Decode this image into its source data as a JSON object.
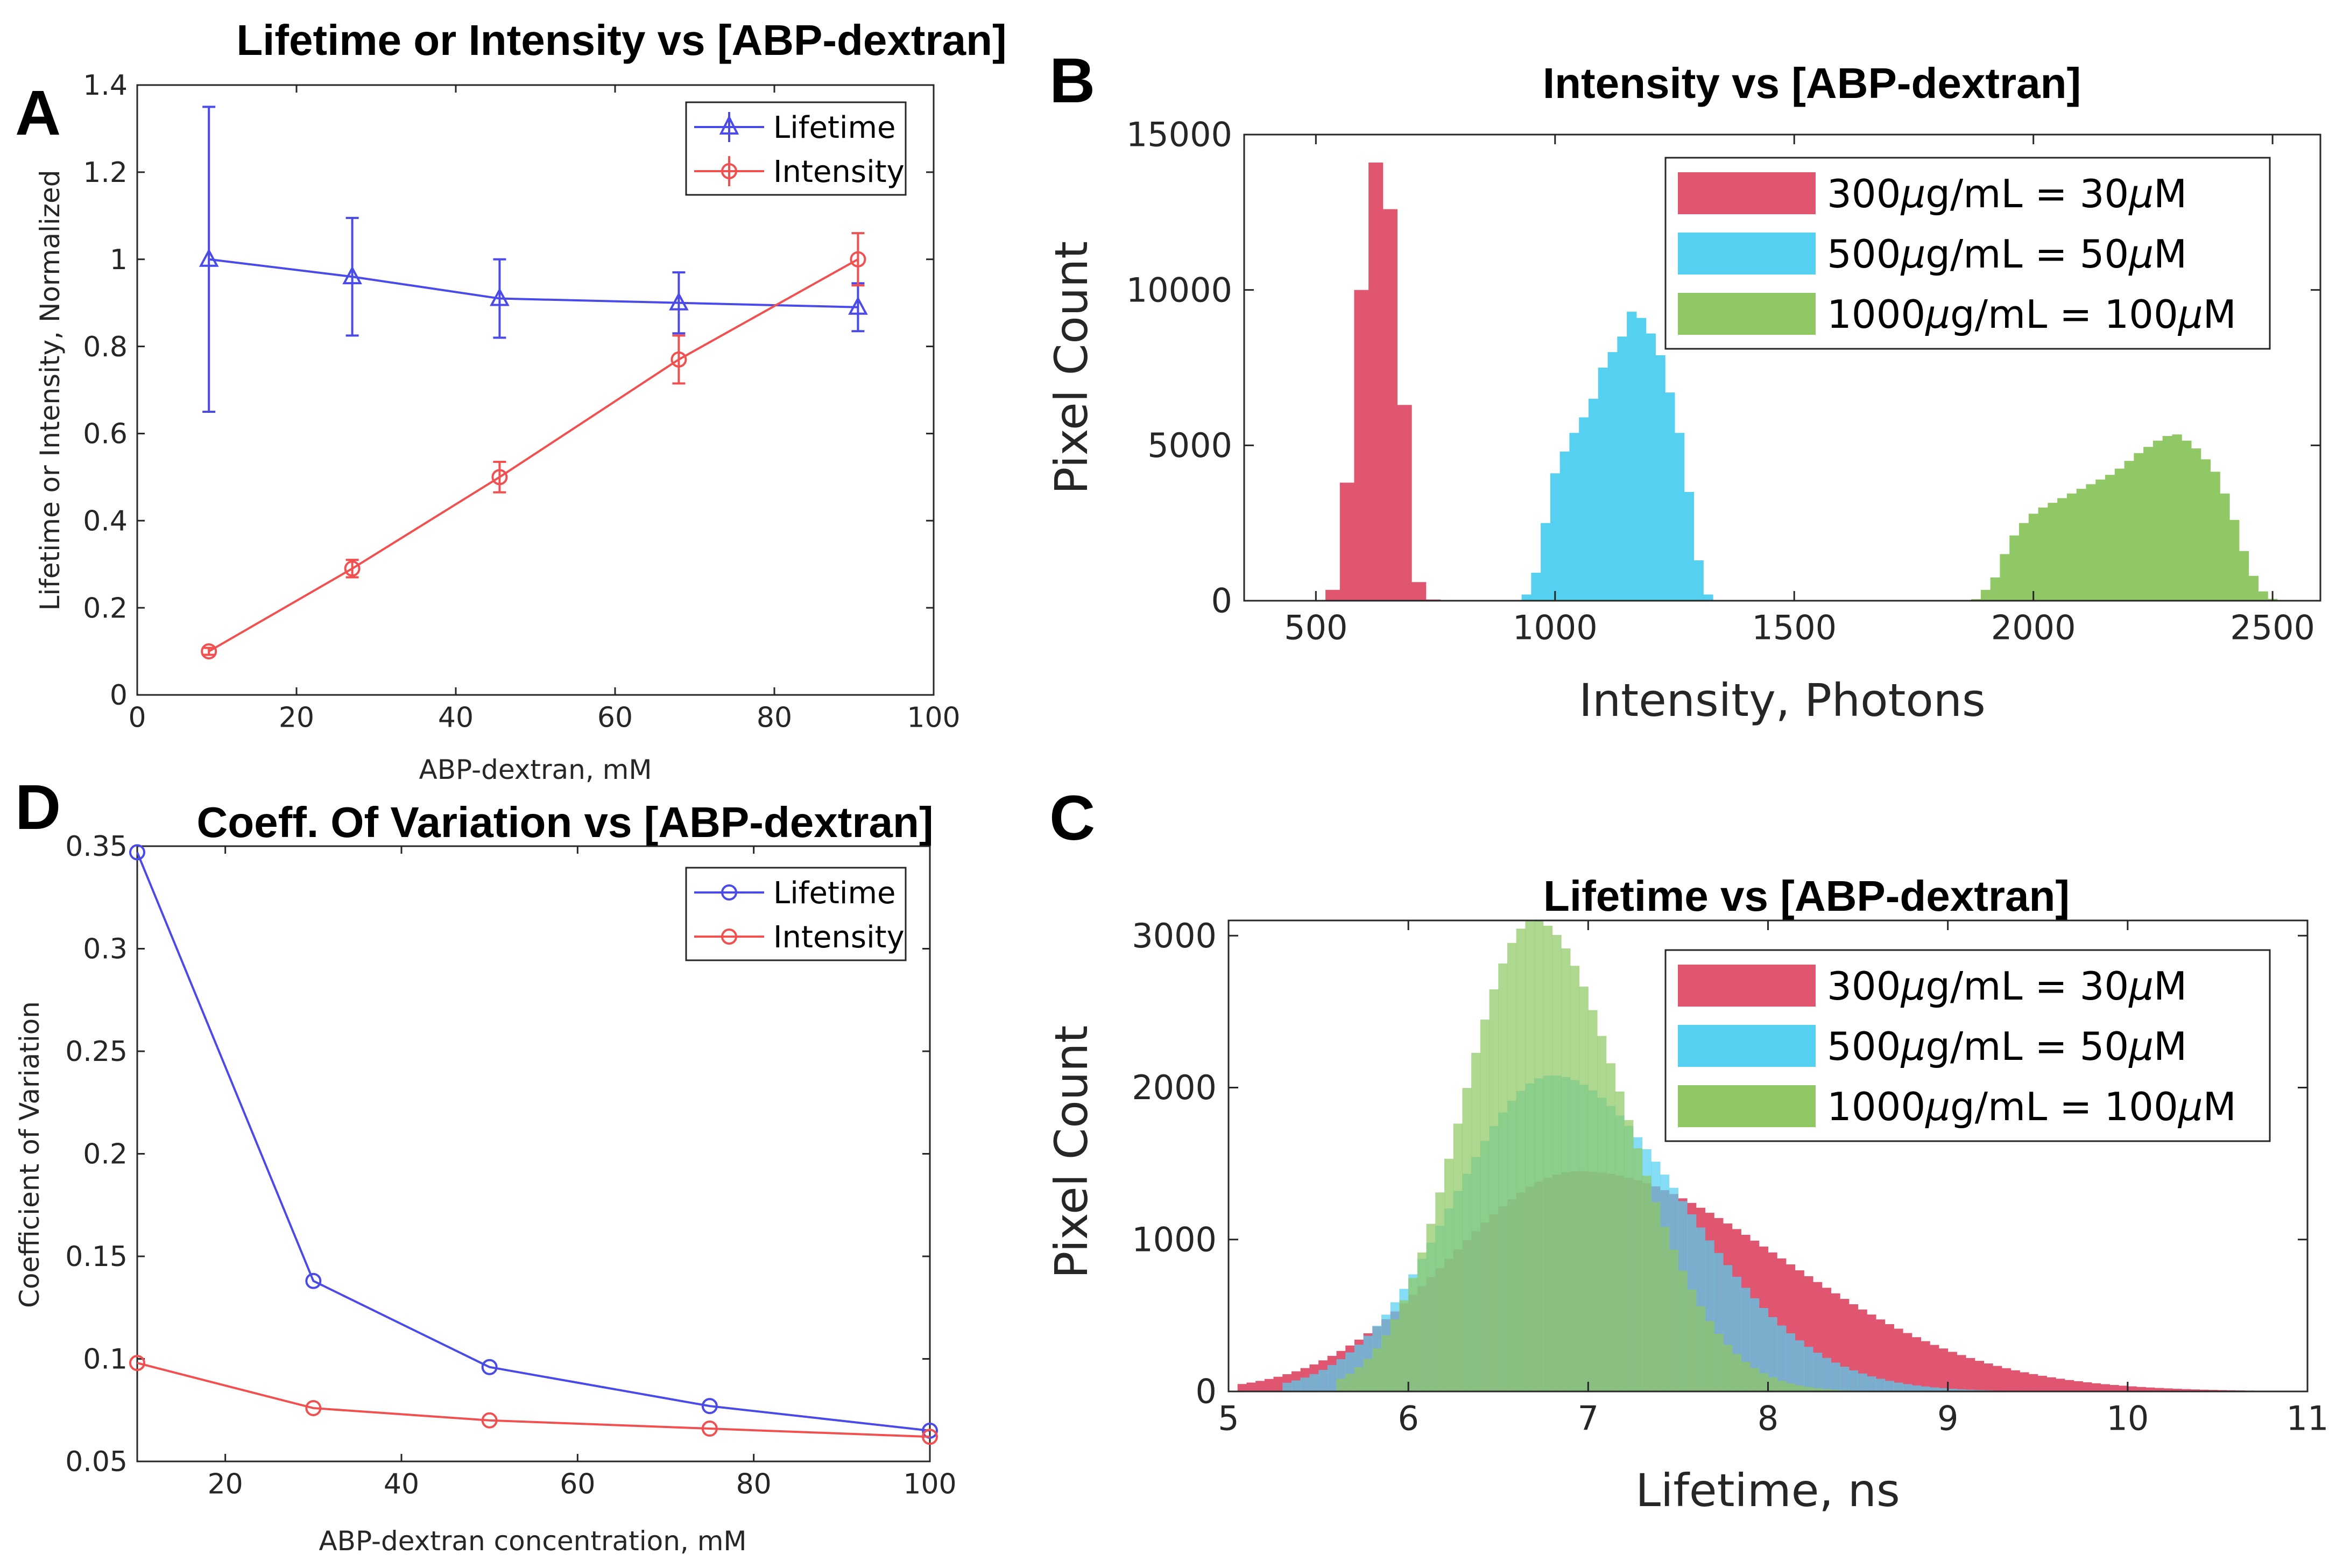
{
  "panel_letters": {
    "a": "A",
    "b": "B",
    "c": "C",
    "d": "D"
  },
  "chart_data": [
    {
      "id": "A",
      "type": "line",
      "title": "Lifetime or Intensity vs [ABP-dextran]",
      "xlabel": "ABP-dextran, mM",
      "ylabel": "Lifetime or Intensity, Normalized",
      "xlim": [
        0,
        100
      ],
      "ylim": [
        0,
        1.4
      ],
      "xticks": [
        0,
        20,
        40,
        60,
        80,
        100
      ],
      "yticks": [
        0,
        0.2,
        0.4,
        0.6,
        0.8,
        1,
        1.2,
        1.4
      ],
      "xtick_labels": [
        "0",
        "20",
        "40",
        "60",
        "80",
        "100"
      ],
      "ytick_labels": [
        "0",
        "0.2",
        "0.4",
        "0.6",
        "0.8",
        "1",
        "1.2",
        "1.4"
      ],
      "legend_position": "top-right",
      "series": [
        {
          "name": "Lifetime",
          "color": "#4a4ae8",
          "marker": "triangle",
          "x": [
            9,
            27,
            45.5,
            68,
            90.5
          ],
          "y": [
            1.0,
            0.96,
            0.91,
            0.9,
            0.89
          ],
          "err": [
            0.35,
            0.135,
            0.09,
            0.07,
            0.055
          ]
        },
        {
          "name": "Intensity",
          "color": "#f05050",
          "marker": "circle",
          "x": [
            9,
            27,
            45.5,
            68,
            90.5
          ],
          "y": [
            0.1,
            0.29,
            0.5,
            0.77,
            1.0
          ],
          "err": [
            0.008,
            0.02,
            0.035,
            0.055,
            0.06
          ]
        }
      ]
    },
    {
      "id": "B",
      "type": "histogram",
      "title": "Intensity vs [ABP-dextran]",
      "xlabel": "Intensity, Photons",
      "ylabel": "Pixel Count",
      "xlim": [
        350,
        2600
      ],
      "ylim": [
        0,
        15000
      ],
      "xticks": [
        500,
        1000,
        1500,
        2000,
        2500
      ],
      "yticks": [
        0,
        5000,
        10000,
        15000
      ],
      "xtick_labels": [
        "500",
        "1000",
        "1500",
        "2000",
        "2500"
      ],
      "ytick_labels": [
        "0",
        "5000",
        "10000",
        "15000"
      ],
      "legend_position": "top-right",
      "series": [
        {
          "name_prefix": "300",
          "name_mid": "g/mL = 30",
          "name_suffix": "M",
          "color": "#e05570",
          "bin_start": 520,
          "bin_width": 30,
          "counts": [
            350,
            3800,
            10000,
            14100,
            12600,
            6300,
            600,
            40
          ]
        },
        {
          "name_prefix": "500",
          "name_mid": "g/mL = 50",
          "name_suffix": "M",
          "color": "#55d0f0",
          "bin_start": 930,
          "bin_width": 20,
          "counts": [
            200,
            900,
            2500,
            4100,
            4800,
            5400,
            5900,
            6500,
            7500,
            8000,
            8500,
            9300,
            9100,
            8600,
            7900,
            6700,
            5400,
            3500,
            1300,
            200
          ]
        },
        {
          "name_prefix": "1000",
          "name_mid": "g/mL = 100",
          "name_suffix": "M",
          "color": "#8fc864",
          "bin_start": 1870,
          "bin_width": 20,
          "counts": [
            50,
            350,
            750,
            1500,
            2100,
            2500,
            2800,
            3000,
            3150,
            3300,
            3450,
            3600,
            3750,
            3900,
            4050,
            4250,
            4500,
            4750,
            4950,
            5150,
            5300,
            5350,
            5150,
            4900,
            4550,
            4150,
            3450,
            2600,
            1600,
            800,
            300,
            60
          ]
        }
      ]
    },
    {
      "id": "C",
      "type": "histogram",
      "title": "Lifetime vs [ABP-dextran]",
      "xlabel": "Lifetime, ns",
      "ylabel": "Pixel Count",
      "xlim": [
        5,
        11
      ],
      "ylim": [
        0,
        3100
      ],
      "xticks": [
        5,
        6,
        7,
        8,
        9,
        10,
        11
      ],
      "yticks": [
        0,
        1000,
        2000,
        3000
      ],
      "xtick_labels": [
        "5",
        "6",
        "7",
        "8",
        "9",
        "10",
        "11"
      ],
      "ytick_labels": [
        "0",
        "1000",
        "2000",
        "3000"
      ],
      "legend_position": "top-right",
      "series": [
        {
          "name_prefix": "300",
          "name_mid": "g/mL = 30",
          "name_suffix": "M",
          "color": "#e05570",
          "mode": 6.95,
          "sigma_left": 0.72,
          "sigma_right": 1.12,
          "peak": 1450,
          "start": 5.05,
          "end": 10.95
        },
        {
          "name_prefix": "500",
          "name_mid": "g/mL = 50",
          "name_suffix": "M",
          "color": "#55d0f0",
          "mode": 6.8,
          "sigma_left": 0.55,
          "sigma_right": 0.72,
          "peak": 2080,
          "start": 5.3,
          "end": 9.6
        },
        {
          "name_prefix": "1000",
          "name_mid": "g/mL = 100",
          "name_suffix": "M",
          "color": "#8fc864",
          "mode": 6.7,
          "sigma_left": 0.4,
          "sigma_right": 0.5,
          "peak": 3100,
          "start": 5.6,
          "end": 8.7
        }
      ]
    },
    {
      "id": "D",
      "type": "line",
      "title": "Coeff. Of Variation vs [ABP-dextran]",
      "xlabel": "ABP-dextran concentration, mM",
      "ylabel": "Coefficient of Variation",
      "xlim": [
        10,
        100
      ],
      "ylim": [
        0.05,
        0.35
      ],
      "xticks": [
        20,
        40,
        60,
        80,
        100
      ],
      "yticks": [
        0.05,
        0.1,
        0.15,
        0.2,
        0.25,
        0.3,
        0.35
      ],
      "xtick_labels": [
        "20",
        "40",
        "60",
        "80",
        "100"
      ],
      "ytick_labels": [
        "0.05",
        "0.1",
        "0.15",
        "0.2",
        "0.25",
        "0.3",
        "0.35"
      ],
      "legend_position": "top-right",
      "series": [
        {
          "name": "Lifetime",
          "color": "#4a4ae8",
          "marker": "circle",
          "x": [
            10,
            30,
            50,
            75,
            100
          ],
          "y": [
            0.347,
            0.138,
            0.096,
            0.077,
            0.065
          ]
        },
        {
          "name": "Intensity",
          "color": "#f05050",
          "marker": "circle",
          "x": [
            10,
            30,
            50,
            75,
            100
          ],
          "y": [
            0.098,
            0.076,
            0.07,
            0.066,
            0.062
          ]
        }
      ]
    }
  ]
}
